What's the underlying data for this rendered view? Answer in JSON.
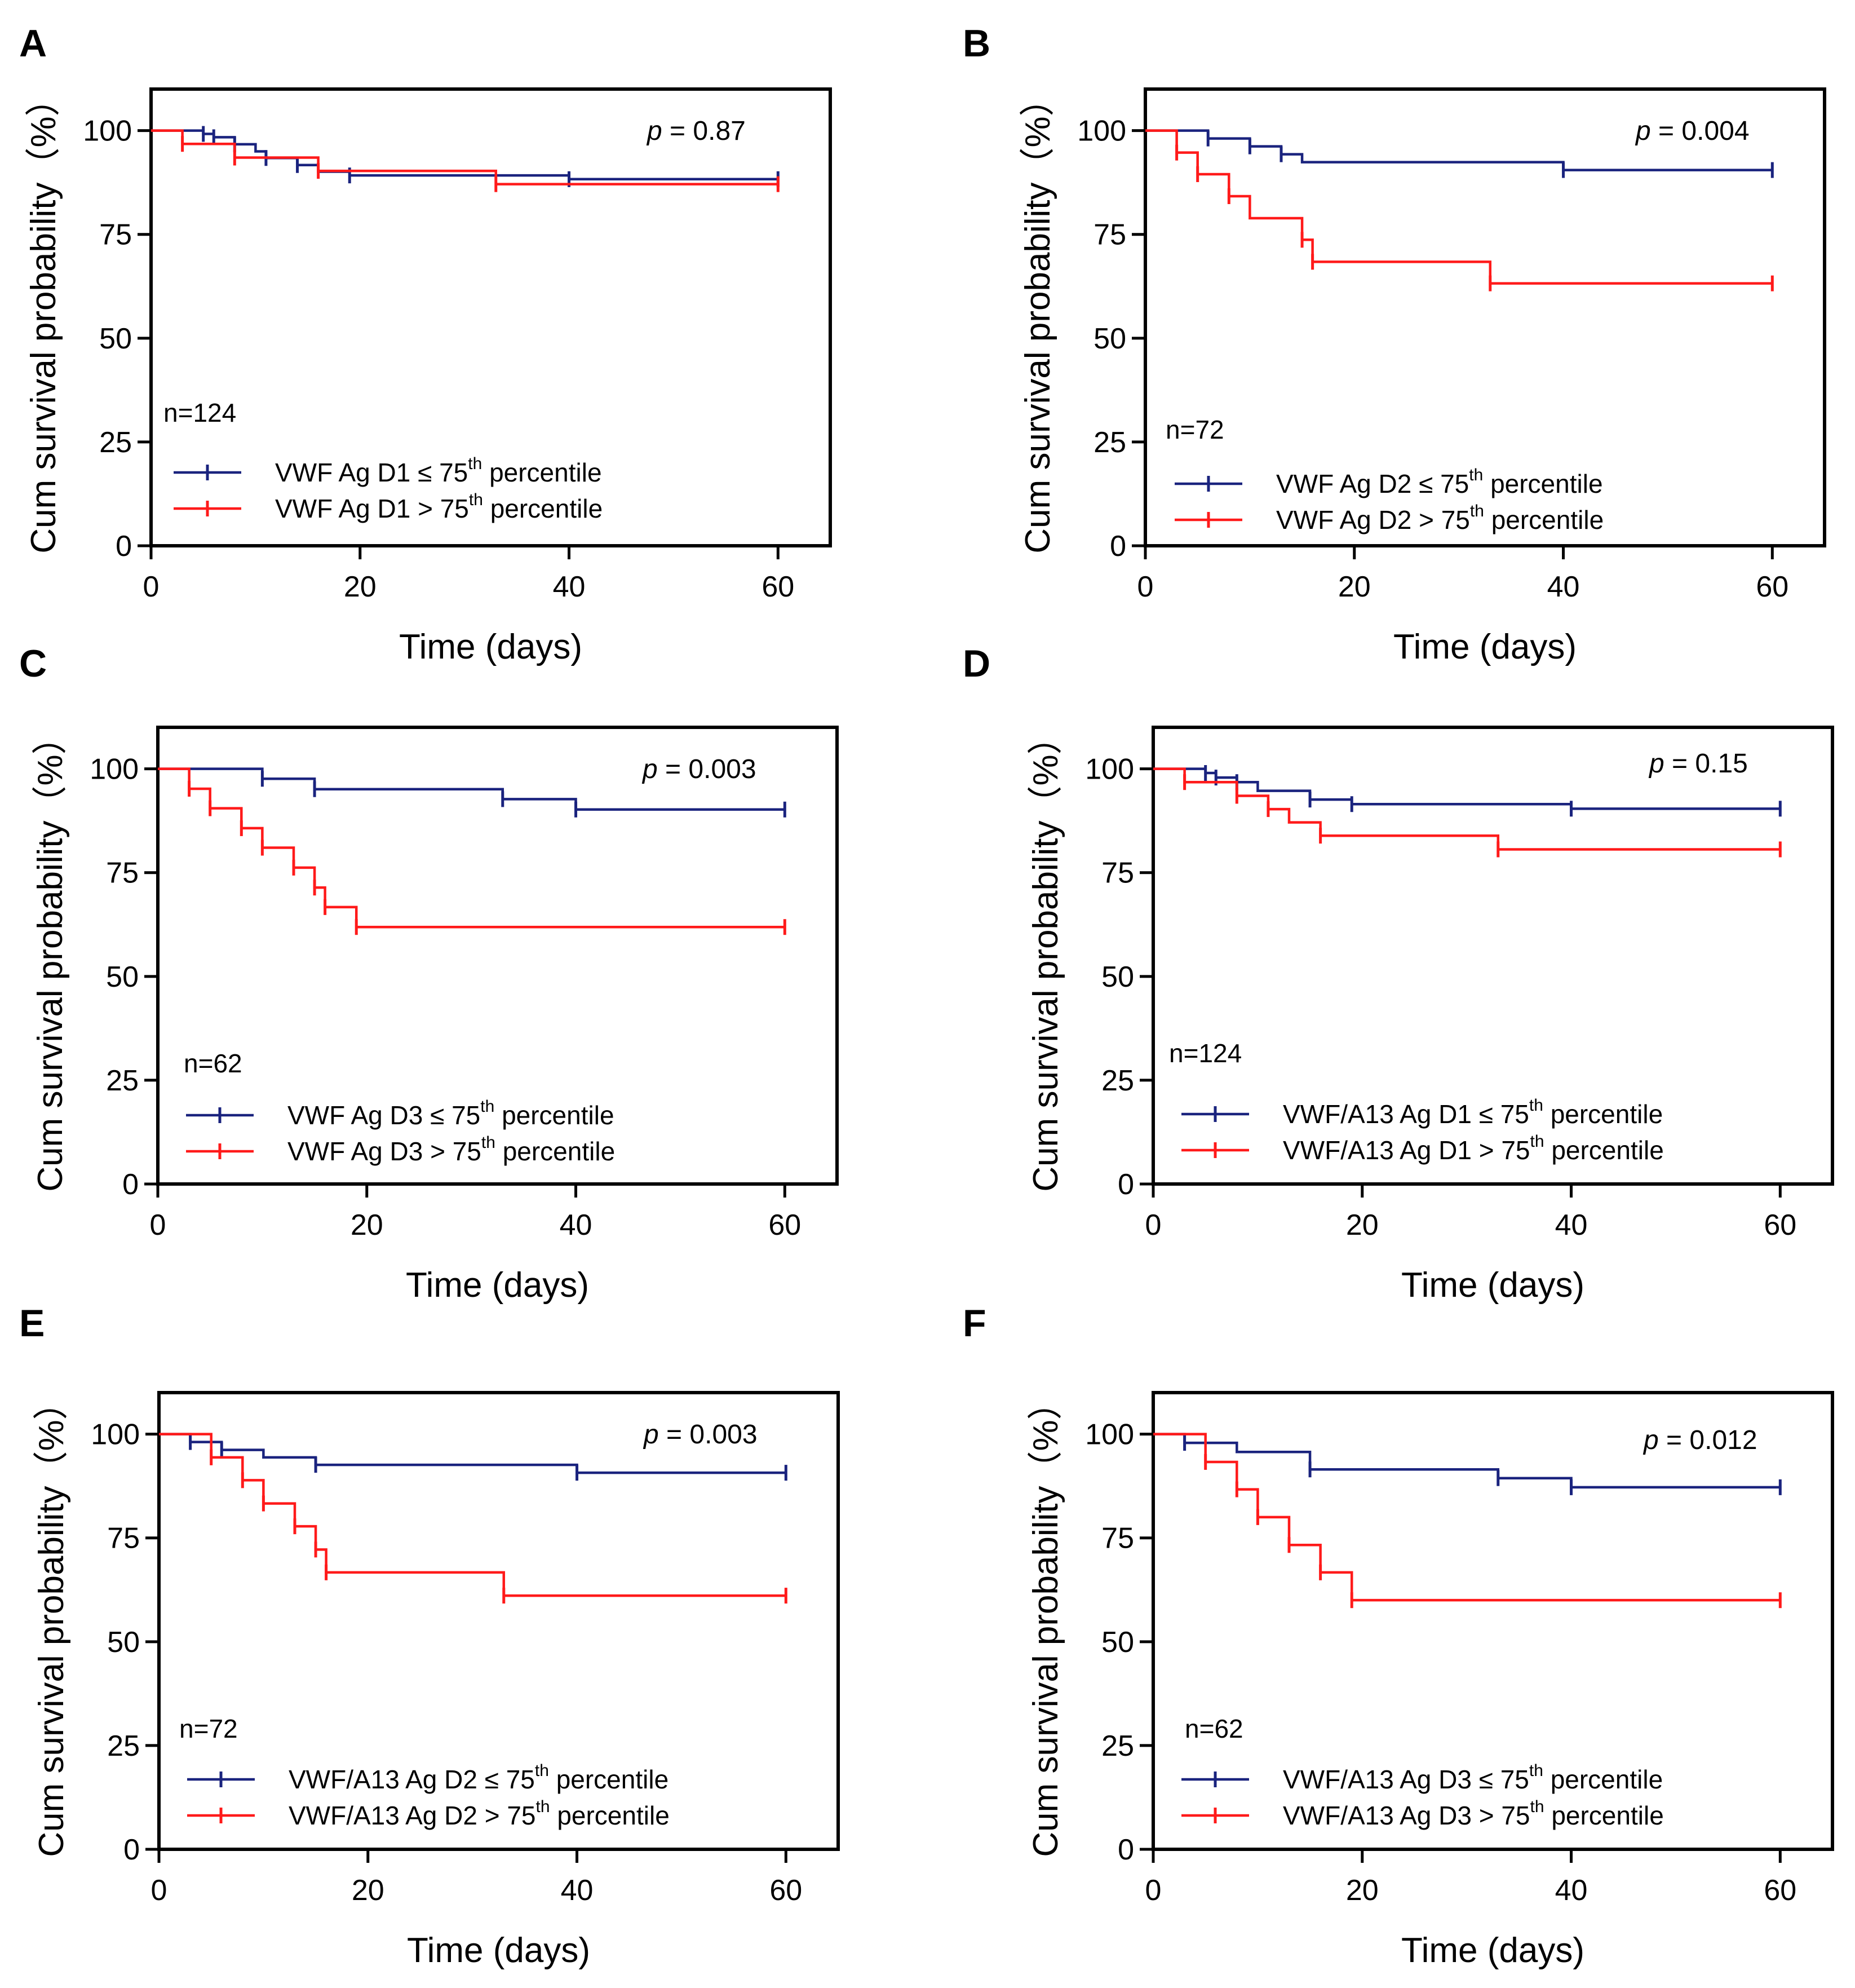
{
  "figure": {
    "y_axis_title": "Cum survival probability（%）",
    "x_axis_title": "Time (days)",
    "p_symbol": "p",
    "legend_superscript": "th",
    "legend_suffix": "percentile",
    "colors": {
      "low_group": "#1a237e",
      "high_group": "#ff1a1a",
      "frame": "#000000"
    }
  },
  "chart_data": [
    {
      "panel": "A",
      "type": "line",
      "n_label": "n=124",
      "p_value": "= 0.87",
      "xlim": [
        0,
        65
      ],
      "ylim": [
        0,
        110
      ],
      "xticks": [
        "0",
        "20",
        "40",
        "60"
      ],
      "yticks": [
        "0",
        "25",
        "50",
        "75",
        "100"
      ],
      "series": [
        {
          "name": "VWF Ag D1 ≤ 75",
          "group": "low",
          "color": "#1a237e",
          "steps": [
            [
              0,
              100
            ],
            [
              5,
              99.2
            ],
            [
              6,
              98.4
            ],
            [
              8,
              96.7
            ],
            [
              10,
              95.0
            ],
            [
              11,
              93.4
            ],
            [
              14,
              91.7
            ],
            [
              16,
              90.1
            ],
            [
              19,
              89.2
            ],
            [
              40,
              88.3
            ],
            [
              60,
              88.3
            ]
          ],
          "censor": [
            5,
            6,
            8,
            11,
            14,
            19,
            40,
            60
          ]
        },
        {
          "name": "VWF Ag D1 > 75",
          "group": "high",
          "color": "#ff1a1a",
          "steps": [
            [
              0,
              100
            ],
            [
              3,
              96.8
            ],
            [
              8,
              93.5
            ],
            [
              16,
              90.3
            ],
            [
              33,
              87.1
            ],
            [
              60,
              87.1
            ]
          ],
          "censor": [
            3,
            8,
            16,
            33,
            60
          ]
        }
      ]
    },
    {
      "panel": "B",
      "type": "line",
      "n_label": "n=72",
      "p_value": "= 0.004",
      "xlim": [
        0,
        65
      ],
      "ylim": [
        0,
        110
      ],
      "xticks": [
        "0",
        "20",
        "40",
        "60"
      ],
      "yticks": [
        "0",
        "25",
        "50",
        "75",
        "100"
      ],
      "series": [
        {
          "name": "VWF Ag D2 ≤ 75",
          "group": "low",
          "color": "#1a237e",
          "steps": [
            [
              0,
              100
            ],
            [
              6,
              98.1
            ],
            [
              10,
              96.2
            ],
            [
              13,
              94.3
            ],
            [
              15,
              92.4
            ],
            [
              40,
              90.5
            ],
            [
              60,
              90.5
            ]
          ],
          "censor": [
            6,
            10,
            13,
            40,
            60
          ]
        },
        {
          "name": "VWF Ag D2 > 75",
          "group": "high",
          "color": "#ff1a1a",
          "steps": [
            [
              0,
              100
            ],
            [
              3,
              94.7
            ],
            [
              5,
              89.5
            ],
            [
              8,
              84.2
            ],
            [
              10,
              78.9
            ],
            [
              15,
              73.7
            ],
            [
              16,
              68.4
            ],
            [
              33,
              63.2
            ],
            [
              60,
              63.2
            ]
          ],
          "censor": [
            3,
            5,
            8,
            15,
            16,
            33,
            60
          ]
        }
      ]
    },
    {
      "panel": "C",
      "type": "line",
      "n_label": "n=62",
      "p_value": "= 0.003",
      "xlim": [
        0,
        65
      ],
      "ylim": [
        0,
        110
      ],
      "xticks": [
        "0",
        "20",
        "40",
        "60"
      ],
      "yticks": [
        "0",
        "25",
        "50",
        "75",
        "100"
      ],
      "series": [
        {
          "name": "VWF Ag D3 ≤ 75",
          "group": "low",
          "color": "#1a237e",
          "steps": [
            [
              0,
              100
            ],
            [
              10,
              97.6
            ],
            [
              15,
              95.1
            ],
            [
              33,
              92.7
            ],
            [
              40,
              90.2
            ],
            [
              60,
              90.2
            ]
          ],
          "censor": [
            10,
            15,
            33,
            40,
            60
          ]
        },
        {
          "name": "VWF Ag D3 > 75",
          "group": "high",
          "color": "#ff1a1a",
          "steps": [
            [
              0,
              100
            ],
            [
              3,
              95.2
            ],
            [
              5,
              90.5
            ],
            [
              8,
              85.7
            ],
            [
              10,
              81.0
            ],
            [
              13,
              76.2
            ],
            [
              15,
              71.4
            ],
            [
              16,
              66.7
            ],
            [
              19,
              61.9
            ],
            [
              60,
              61.9
            ]
          ],
          "censor": [
            3,
            5,
            8,
            10,
            13,
            15,
            16,
            19,
            60
          ]
        }
      ]
    },
    {
      "panel": "D",
      "type": "line",
      "n_label": "n=124",
      "p_value": "= 0.15",
      "xlim": [
        0,
        65
      ],
      "ylim": [
        0,
        110
      ],
      "xticks": [
        "0",
        "20",
        "40",
        "60"
      ],
      "yticks": [
        "0",
        "25",
        "50",
        "75",
        "100"
      ],
      "series": [
        {
          "name": "VWF/A13 Ag D1 ≤ 75",
          "group": "low",
          "color": "#1a237e",
          "steps": [
            [
              0,
              100
            ],
            [
              5,
              99.0
            ],
            [
              6,
              97.9
            ],
            [
              8,
              96.8
            ],
            [
              10,
              94.7
            ],
            [
              15,
              92.6
            ],
            [
              19,
              91.5
            ],
            [
              40,
              90.4
            ],
            [
              60,
              90.4
            ]
          ],
          "censor": [
            5,
            6,
            8,
            15,
            19,
            40,
            60
          ]
        },
        {
          "name": "VWF/A13 Ag D1 > 75",
          "group": "high",
          "color": "#ff1a1a",
          "steps": [
            [
              0,
              100
            ],
            [
              3,
              96.8
            ],
            [
              8,
              93.5
            ],
            [
              11,
              90.3
            ],
            [
              13,
              87.1
            ],
            [
              16,
              83.9
            ],
            [
              33,
              80.6
            ],
            [
              60,
              80.6
            ]
          ],
          "censor": [
            3,
            8,
            11,
            16,
            33,
            60
          ]
        }
      ]
    },
    {
      "panel": "E",
      "type": "line",
      "n_label": "n=72",
      "p_value": "= 0.003",
      "xlim": [
        0,
        65
      ],
      "ylim": [
        0,
        110
      ],
      "xticks": [
        "0",
        "20",
        "40",
        "60"
      ],
      "yticks": [
        "0",
        "25",
        "50",
        "75",
        "100"
      ],
      "series": [
        {
          "name": "VWF/A13 Ag D2 ≤ 75",
          "group": "low",
          "color": "#1a237e",
          "steps": [
            [
              0,
              100
            ],
            [
              3,
              98.1
            ],
            [
              6,
              96.2
            ],
            [
              10,
              94.4
            ],
            [
              15,
              92.6
            ],
            [
              40,
              90.7
            ],
            [
              60,
              90.7
            ]
          ],
          "censor": [
            3,
            6,
            15,
            40,
            60
          ]
        },
        {
          "name": "VWF/A13 Ag D2 > 75",
          "group": "high",
          "color": "#ff1a1a",
          "steps": [
            [
              0,
              100
            ],
            [
              5,
              94.4
            ],
            [
              8,
              88.9
            ],
            [
              10,
              83.3
            ],
            [
              13,
              77.8
            ],
            [
              15,
              72.2
            ],
            [
              16,
              66.7
            ],
            [
              33,
              61.1
            ],
            [
              60,
              61.1
            ]
          ],
          "censor": [
            5,
            8,
            10,
            13,
            15,
            16,
            33,
            60
          ]
        }
      ]
    },
    {
      "panel": "F",
      "type": "line",
      "n_label": "n=62",
      "p_value": "= 0.012",
      "xlim": [
        0,
        65
      ],
      "ylim": [
        0,
        110
      ],
      "xticks": [
        "0",
        "20",
        "40",
        "60"
      ],
      "yticks": [
        "0",
        "25",
        "50",
        "75",
        "100"
      ],
      "series": [
        {
          "name": "VWF/A13 Ag D3 ≤ 75",
          "group": "low",
          "color": "#1a237e",
          "steps": [
            [
              0,
              100
            ],
            [
              3,
              97.9
            ],
            [
              8,
              95.7
            ],
            [
              15,
              91.5
            ],
            [
              33,
              89.4
            ],
            [
              40,
              87.2
            ],
            [
              60,
              87.2
            ]
          ],
          "censor": [
            3,
            15,
            33,
            40,
            60
          ]
        },
        {
          "name": "VWF/A13 Ag D3 > 75",
          "group": "high",
          "color": "#ff1a1a",
          "steps": [
            [
              0,
              100
            ],
            [
              5,
              93.3
            ],
            [
              8,
              86.7
            ],
            [
              10,
              80.0
            ],
            [
              13,
              73.3
            ],
            [
              16,
              66.7
            ],
            [
              19,
              60.0
            ],
            [
              60,
              60.0
            ]
          ],
          "censor": [
            5,
            8,
            10,
            13,
            16,
            19,
            60
          ]
        }
      ]
    }
  ]
}
